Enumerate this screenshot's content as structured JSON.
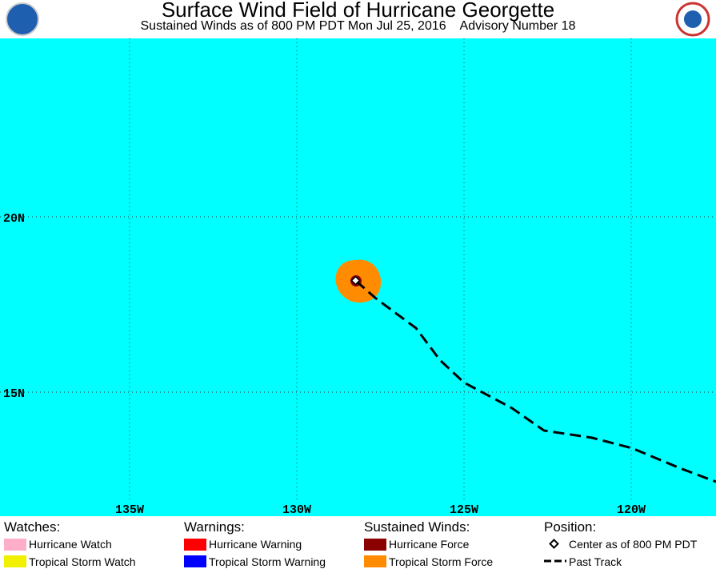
{
  "header": {
    "title": "Surface Wind Field of Hurricane Georgette",
    "subtitle": "Sustained Winds as of 800 PM PDT Mon Jul 25, 2016    Advisory Number 18"
  },
  "map": {
    "lat_labels": [
      "20N",
      "15N"
    ],
    "lon_labels": [
      "135W",
      "130W",
      "125W",
      "120W"
    ]
  },
  "legend": [
    {
      "heading": "Watches:",
      "items": [
        "Hurricane Watch",
        "Tropical Storm Watch"
      ]
    },
    {
      "heading": "Warnings:",
      "items": [
        "Hurricane Warning",
        "Tropical Storm Warning"
      ]
    },
    {
      "heading": "Sustained Winds:",
      "items": [
        "Hurricane Force",
        "Tropical Storm Force"
      ]
    },
    {
      "heading": "Position:",
      "items": [
        "Center as of 800 PM PDT",
        "Past Track"
      ]
    }
  ]
}
